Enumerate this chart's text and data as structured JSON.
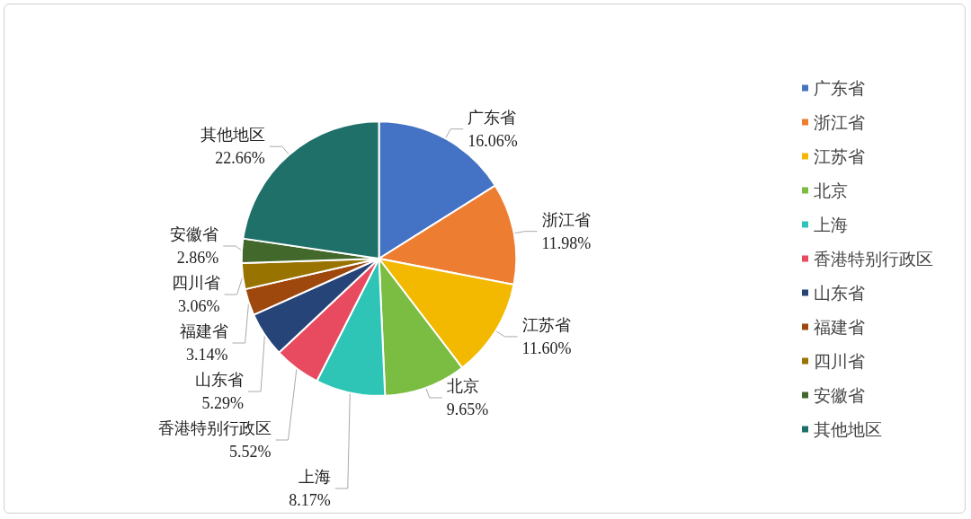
{
  "chart_data": {
    "type": "pie",
    "categories": [
      "广东省",
      "浙江省",
      "江苏省",
      "北京",
      "上海",
      "香港特别行政区",
      "山东省",
      "福建省",
      "四川省",
      "安徽省",
      "其他地区"
    ],
    "values": [
      16.06,
      11.98,
      11.6,
      9.65,
      8.17,
      5.52,
      5.29,
      3.14,
      3.06,
      2.86,
      22.66
    ],
    "value_labels": [
      "16.06%",
      "11.98%",
      "11.60%",
      "9.65%",
      "8.17%",
      "5.52%",
      "5.29%",
      "3.14%",
      "3.06%",
      "2.86%",
      "22.66%"
    ],
    "colors": [
      "#4472c4",
      "#ed7d31",
      "#f2b900",
      "#7abd42",
      "#2ec4b6",
      "#e84a5f",
      "#264478",
      "#9e480e",
      "#997300",
      "#43682b",
      "#1e7068"
    ],
    "legend": "right"
  }
}
